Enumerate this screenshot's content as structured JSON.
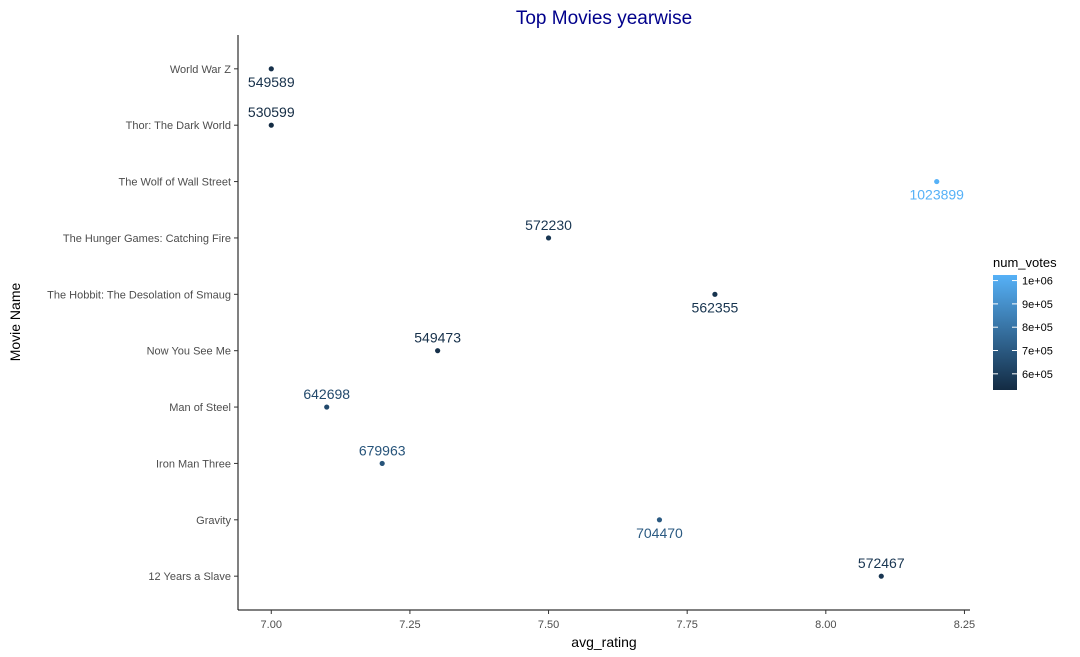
{
  "chart_data": {
    "type": "scatter",
    "title": "Top Movies yearwise",
    "xlabel": "avg_rating",
    "ylabel": "Movie Name",
    "xlim": [
      6.94,
      8.26
    ],
    "xticks": [
      7.0,
      7.25,
      7.5,
      7.75,
      8.0,
      8.25
    ],
    "xtick_labels": [
      "7.00",
      "7.25",
      "7.50",
      "7.75",
      "8.00",
      "8.25"
    ],
    "categories": [
      "12 Years a Slave",
      "Gravity",
      "Iron Man Three",
      "Man of Steel",
      "Now You See Me",
      "The Hobbit: The Desolation of Smaug",
      "The Hunger Games: Catching Fire",
      "The Wolf of Wall Street",
      "Thor: The Dark World",
      "World War Z"
    ],
    "points": [
      {
        "movie": "12 Years a Slave",
        "avg_rating": 8.1,
        "num_votes": 572467,
        "label_position": "above"
      },
      {
        "movie": "Gravity",
        "avg_rating": 7.7,
        "num_votes": 704470,
        "label_position": "below"
      },
      {
        "movie": "Iron Man Three",
        "avg_rating": 7.2,
        "num_votes": 679963,
        "label_position": "above"
      },
      {
        "movie": "Man of Steel",
        "avg_rating": 7.1,
        "num_votes": 642698,
        "label_position": "above"
      },
      {
        "movie": "Now You See Me",
        "avg_rating": 7.3,
        "num_votes": 549473,
        "label_position": "above"
      },
      {
        "movie": "The Hobbit: The Desolation of Smaug",
        "avg_rating": 7.8,
        "num_votes": 562355,
        "label_position": "below"
      },
      {
        "movie": "The Hunger Games: Catching Fire",
        "avg_rating": 7.5,
        "num_votes": 572230,
        "label_position": "above"
      },
      {
        "movie": "The Wolf of Wall Street",
        "avg_rating": 8.2,
        "num_votes": 1023899,
        "label_position": "below"
      },
      {
        "movie": "Thor: The Dark World",
        "avg_rating": 7.0,
        "num_votes": 530599,
        "label_position": "above"
      },
      {
        "movie": "World War Z",
        "avg_rating": 7.0,
        "num_votes": 549589,
        "label_position": "below"
      }
    ],
    "color_scale": {
      "name": "num_votes",
      "low_color": "#132B43",
      "high_color": "#56B1F7",
      "range": [
        530599,
        1023899
      ],
      "breaks": [
        600000,
        700000,
        800000,
        900000,
        1000000
      ],
      "break_labels": [
        "6e+05",
        "7e+05",
        "8e+05",
        "9e+05",
        "1e+06"
      ]
    },
    "title_color": "#00008B",
    "grid": false,
    "legend_position": "right"
  }
}
